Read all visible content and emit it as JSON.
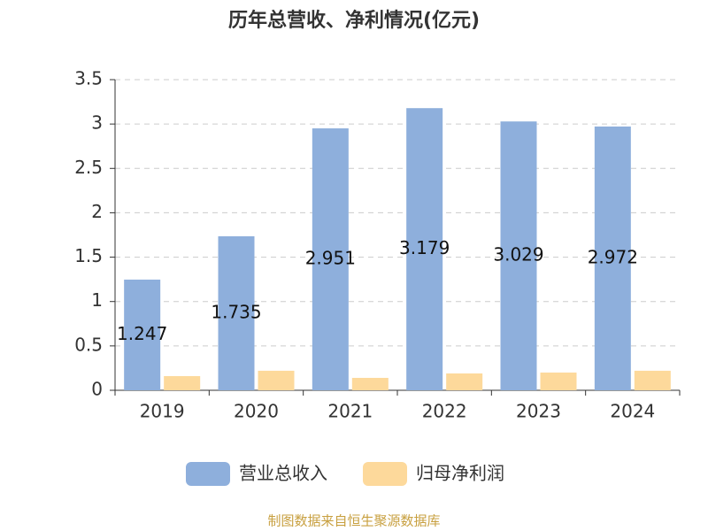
{
  "chart_data": {
    "type": "bar",
    "title": "历年总营收、净利情况(亿元)",
    "categories": [
      "2019",
      "2020",
      "2021",
      "2022",
      "2023",
      "2024"
    ],
    "series": [
      {
        "name": "营业总收入",
        "color": "#8eafdc",
        "values": [
          1.247,
          1.735,
          2.951,
          3.179,
          3.029,
          2.972
        ],
        "show_labels": true
      },
      {
        "name": "归母净利润",
        "color": "#fdd99b",
        "values": [
          0.16,
          0.22,
          0.14,
          0.19,
          0.2,
          0.22
        ],
        "show_labels": false
      }
    ],
    "ylim": [
      0,
      3.5
    ],
    "yticks": [
      0,
      0.5,
      1,
      1.5,
      2,
      2.5,
      3,
      3.5
    ],
    "grid": true,
    "legend": "bottom",
    "source": "制图数据来自恒生聚源数据库"
  }
}
